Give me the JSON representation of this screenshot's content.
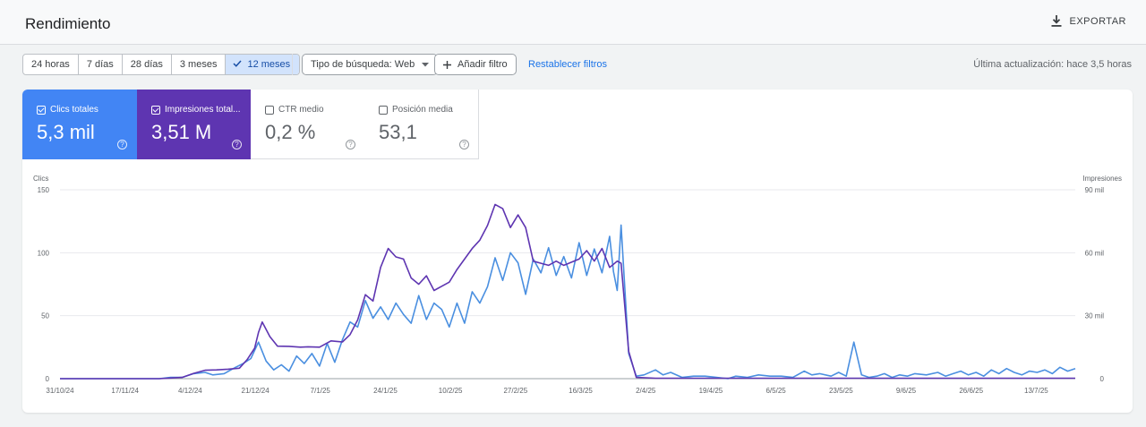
{
  "header": {
    "title": "Rendimiento",
    "export_label": "EXPORTAR"
  },
  "toolbar": {
    "ranges": [
      "24 horas",
      "7 días",
      "28 días",
      "3 meses",
      "12 meses"
    ],
    "active_range": "12 meses",
    "search_type_label": "Tipo de búsqueda: Web",
    "add_filter_label": "Añadir filtro",
    "reset_label": "Restablecer filtros",
    "last_updated": "Última actualización: hace 3,5 horas"
  },
  "metrics": [
    {
      "label": "Clics totales",
      "value": "5,3 mil",
      "checked": true,
      "color": "#4285f4"
    },
    {
      "label": "Impresiones total...",
      "value": "3,51 M",
      "checked": true,
      "color": "#5e35b1"
    },
    {
      "label": "CTR medio",
      "value": "0,2 %",
      "checked": false,
      "color": "#ffffff"
    },
    {
      "label": "Posición media",
      "value": "53,1",
      "checked": false,
      "color": "#ffffff"
    }
  ],
  "colors": {
    "clicks": "#4a8fe0",
    "impressions": "#5e35b1",
    "accent": "#1a73e8"
  },
  "chart_data": {
    "type": "line",
    "ylabel_left": "Clics",
    "ylabel_right": "Impresiones",
    "ylim_left": [
      0,
      150
    ],
    "ylim_right": [
      0,
      90000
    ],
    "yticks_left": [
      "0",
      "50",
      "100",
      "150"
    ],
    "yticks_right": [
      "0",
      "30 mil",
      "60 mil",
      "90 mil"
    ],
    "x_ticks": [
      "31/10/24",
      "17/11/24",
      "4/12/24",
      "21/12/24",
      "7/1/25",
      "24/1/25",
      "10/2/25",
      "27/2/25",
      "16/3/25",
      "2/4/25",
      "19/4/25",
      "6/5/25",
      "23/5/25",
      "9/6/25",
      "26/6/25",
      "13/7/25"
    ],
    "x_start": "2024-10-31",
    "x_end": "2025-07-24",
    "grid": true,
    "series": [
      {
        "name": "Clics",
        "axis": "left",
        "points": [
          [
            "2024-10-31",
            0
          ],
          [
            "2024-11-26",
            0
          ],
          [
            "2024-11-29",
            1
          ],
          [
            "2024-12-02",
            1
          ],
          [
            "2024-12-05",
            4
          ],
          [
            "2024-12-08",
            5
          ],
          [
            "2024-12-10",
            3
          ],
          [
            "2024-12-13",
            4
          ],
          [
            "2024-12-16",
            9
          ],
          [
            "2024-12-18",
            12
          ],
          [
            "2024-12-20",
            16
          ],
          [
            "2024-12-22",
            29
          ],
          [
            "2024-12-24",
            14
          ],
          [
            "2024-12-26",
            7
          ],
          [
            "2024-12-28",
            11
          ],
          [
            "2024-12-30",
            6
          ],
          [
            "2025-01-01",
            18
          ],
          [
            "2025-01-03",
            12
          ],
          [
            "2025-01-05",
            20
          ],
          [
            "2025-01-07",
            10
          ],
          [
            "2025-01-09",
            28
          ],
          [
            "2025-01-11",
            13
          ],
          [
            "2025-01-13",
            31
          ],
          [
            "2025-01-15",
            45
          ],
          [
            "2025-01-17",
            41
          ],
          [
            "2025-01-19",
            62
          ],
          [
            "2025-01-21",
            48
          ],
          [
            "2025-01-23",
            57
          ],
          [
            "2025-01-25",
            47
          ],
          [
            "2025-01-27",
            60
          ],
          [
            "2025-01-29",
            51
          ],
          [
            "2025-01-31",
            44
          ],
          [
            "2025-02-02",
            66
          ],
          [
            "2025-02-04",
            47
          ],
          [
            "2025-02-06",
            60
          ],
          [
            "2025-02-08",
            55
          ],
          [
            "2025-02-10",
            41
          ],
          [
            "2025-02-12",
            60
          ],
          [
            "2025-02-14",
            44
          ],
          [
            "2025-02-16",
            69
          ],
          [
            "2025-02-18",
            60
          ],
          [
            "2025-02-20",
            73
          ],
          [
            "2025-02-22",
            96
          ],
          [
            "2025-02-24",
            78
          ],
          [
            "2025-02-26",
            100
          ],
          [
            "2025-02-28",
            92
          ],
          [
            "2025-03-02",
            67
          ],
          [
            "2025-03-04",
            95
          ],
          [
            "2025-03-06",
            84
          ],
          [
            "2025-03-08",
            104
          ],
          [
            "2025-03-10",
            82
          ],
          [
            "2025-03-12",
            97
          ],
          [
            "2025-03-14",
            80
          ],
          [
            "2025-03-16",
            108
          ],
          [
            "2025-03-18",
            82
          ],
          [
            "2025-03-20",
            103
          ],
          [
            "2025-03-22",
            84
          ],
          [
            "2025-03-24",
            113
          ],
          [
            "2025-03-25",
            85
          ],
          [
            "2025-03-26",
            70
          ],
          [
            "2025-03-27",
            122
          ],
          [
            "2025-03-29",
            20
          ],
          [
            "2025-03-31",
            2
          ],
          [
            "2025-04-02",
            3
          ],
          [
            "2025-04-05",
            7
          ],
          [
            "2025-04-07",
            3
          ],
          [
            "2025-04-09",
            5
          ],
          [
            "2025-04-12",
            1
          ],
          [
            "2025-04-15",
            2
          ],
          [
            "2025-04-18",
            2
          ],
          [
            "2025-04-21",
            1
          ],
          [
            "2025-04-24",
            0
          ],
          [
            "2025-04-26",
            2
          ],
          [
            "2025-04-29",
            1
          ],
          [
            "2025-05-02",
            3
          ],
          [
            "2025-05-05",
            2
          ],
          [
            "2025-05-08",
            2
          ],
          [
            "2025-05-11",
            1
          ],
          [
            "2025-05-14",
            6
          ],
          [
            "2025-05-16",
            3
          ],
          [
            "2025-05-18",
            4
          ],
          [
            "2025-05-21",
            2
          ],
          [
            "2025-05-23",
            5
          ],
          [
            "2025-05-25",
            2
          ],
          [
            "2025-05-27",
            29
          ],
          [
            "2025-05-29",
            3
          ],
          [
            "2025-05-31",
            1
          ],
          [
            "2025-06-02",
            2
          ],
          [
            "2025-06-04",
            4
          ],
          [
            "2025-06-06",
            1
          ],
          [
            "2025-06-08",
            3
          ],
          [
            "2025-06-10",
            2
          ],
          [
            "2025-06-12",
            4
          ],
          [
            "2025-06-15",
            3
          ],
          [
            "2025-06-18",
            5
          ],
          [
            "2025-06-20",
            2
          ],
          [
            "2025-06-22",
            4
          ],
          [
            "2025-06-24",
            6
          ],
          [
            "2025-06-26",
            3
          ],
          [
            "2025-06-28",
            5
          ],
          [
            "2025-06-30",
            2
          ],
          [
            "2025-07-02",
            7
          ],
          [
            "2025-07-04",
            4
          ],
          [
            "2025-07-06",
            8
          ],
          [
            "2025-07-08",
            5
          ],
          [
            "2025-07-10",
            3
          ],
          [
            "2025-07-12",
            6
          ],
          [
            "2025-07-14",
            5
          ],
          [
            "2025-07-16",
            7
          ],
          [
            "2025-07-18",
            4
          ],
          [
            "2025-07-20",
            9
          ],
          [
            "2025-07-22",
            6
          ],
          [
            "2025-07-24",
            8
          ]
        ]
      },
      {
        "name": "Impresiones",
        "axis": "right",
        "points": [
          [
            "2024-10-31",
            0
          ],
          [
            "2024-11-26",
            0
          ],
          [
            "2024-11-29",
            300
          ],
          [
            "2024-12-02",
            600
          ],
          [
            "2024-12-05",
            2500
          ],
          [
            "2024-12-08",
            4000
          ],
          [
            "2024-12-11",
            4200
          ],
          [
            "2024-12-14",
            4500
          ],
          [
            "2024-12-17",
            5000
          ],
          [
            "2024-12-19",
            9000
          ],
          [
            "2024-12-21",
            14500
          ],
          [
            "2024-12-22",
            22000
          ],
          [
            "2024-12-23",
            27000
          ],
          [
            "2024-12-25",
            20000
          ],
          [
            "2024-12-27",
            15500
          ],
          [
            "2024-12-30",
            15400
          ],
          [
            "2025-01-02",
            15000
          ],
          [
            "2025-01-04",
            15200
          ],
          [
            "2025-01-07",
            15000
          ],
          [
            "2025-01-10",
            18000
          ],
          [
            "2025-01-13",
            17500
          ],
          [
            "2025-01-15",
            21000
          ],
          [
            "2025-01-17",
            28000
          ],
          [
            "2025-01-19",
            40000
          ],
          [
            "2025-01-21",
            37000
          ],
          [
            "2025-01-23",
            53000
          ],
          [
            "2025-01-25",
            62000
          ],
          [
            "2025-01-27",
            58000
          ],
          [
            "2025-01-29",
            57000
          ],
          [
            "2025-01-31",
            48000
          ],
          [
            "2025-02-02",
            45000
          ],
          [
            "2025-02-04",
            49000
          ],
          [
            "2025-02-06",
            42000
          ],
          [
            "2025-02-08",
            44000
          ],
          [
            "2025-02-10",
            46000
          ],
          [
            "2025-02-12",
            52000
          ],
          [
            "2025-02-14",
            57000
          ],
          [
            "2025-02-16",
            62000
          ],
          [
            "2025-02-18",
            66000
          ],
          [
            "2025-02-20",
            73000
          ],
          [
            "2025-02-22",
            83000
          ],
          [
            "2025-02-24",
            81000
          ],
          [
            "2025-02-26",
            72000
          ],
          [
            "2025-02-28",
            78000
          ],
          [
            "2025-03-02",
            72000
          ],
          [
            "2025-03-04",
            56000
          ],
          [
            "2025-03-06",
            55000
          ],
          [
            "2025-03-08",
            54000
          ],
          [
            "2025-03-10",
            56000
          ],
          [
            "2025-03-12",
            54000
          ],
          [
            "2025-03-14",
            55500
          ],
          [
            "2025-03-16",
            57000
          ],
          [
            "2025-03-18",
            61000
          ],
          [
            "2025-03-20",
            56000
          ],
          [
            "2025-03-22",
            62000
          ],
          [
            "2025-03-24",
            53000
          ],
          [
            "2025-03-26",
            56000
          ],
          [
            "2025-03-27",
            55000
          ],
          [
            "2025-03-29",
            13000
          ],
          [
            "2025-03-31",
            600
          ],
          [
            "2025-04-05",
            200
          ],
          [
            "2025-07-24",
            200
          ]
        ]
      }
    ]
  }
}
